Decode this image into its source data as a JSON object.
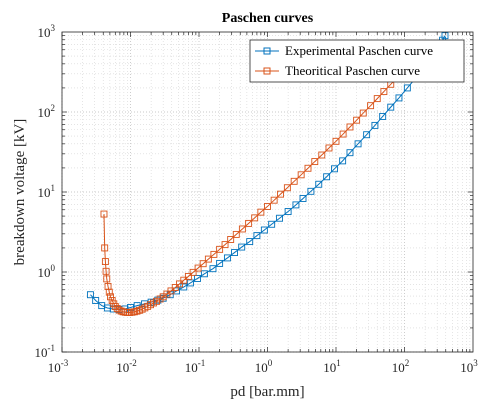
{
  "chart_data": {
    "type": "line",
    "title": "Paschen curves",
    "xlabel": "pd [bar.mm]",
    "ylabel": "breakdown voltage [kV]",
    "xscale": "log",
    "yscale": "log",
    "xlim": [
      0.001,
      1000
    ],
    "ylim": [
      0.1,
      1000
    ],
    "x_ticks": [
      {
        "base": "10",
        "exp": "-3"
      },
      {
        "base": "10",
        "exp": "-2"
      },
      {
        "base": "10",
        "exp": "-1"
      },
      {
        "base": "10",
        "exp": "0"
      },
      {
        "base": "10",
        "exp": "1"
      },
      {
        "base": "10",
        "exp": "2"
      },
      {
        "base": "10",
        "exp": "3"
      }
    ],
    "y_ticks": [
      {
        "base": "10",
        "exp": "-1"
      },
      {
        "base": "10",
        "exp": "0"
      },
      {
        "base": "10",
        "exp": "1"
      },
      {
        "base": "10",
        "exp": "2"
      },
      {
        "base": "10",
        "exp": "3"
      }
    ],
    "grid": "major and minor, dotted",
    "legend_position": "top-right",
    "series": [
      {
        "name": "Experimental Paschen curve",
        "color": "#0072BD",
        "marker": "square",
        "x": [
          0.0026,
          0.0031,
          0.0038,
          0.0046,
          0.0056,
          0.0068,
          0.0083,
          0.01,
          0.0125,
          0.016,
          0.02,
          0.025,
          0.03,
          0.038,
          0.047,
          0.06,
          0.075,
          0.095,
          0.12,
          0.16,
          0.2,
          0.26,
          0.33,
          0.42,
          0.55,
          0.7,
          0.9,
          1.15,
          1.5,
          2,
          2.6,
          3.3,
          4.3,
          5.6,
          7.3,
          9.5,
          12.5,
          16,
          21,
          28,
          37,
          48,
          63,
          83,
          110,
          145,
          190,
          250,
          300,
          330,
          360,
          390
        ],
        "y": [
          0.52,
          0.44,
          0.38,
          0.355,
          0.345,
          0.34,
          0.345,
          0.36,
          0.38,
          0.4,
          0.42,
          0.445,
          0.47,
          0.52,
          0.58,
          0.65,
          0.73,
          0.83,
          0.95,
          1.1,
          1.28,
          1.5,
          1.75,
          2.05,
          2.4,
          2.85,
          3.35,
          3.95,
          4.7,
          5.7,
          6.9,
          8.3,
          10.2,
          12.5,
          15.5,
          19.5,
          24.5,
          31,
          40,
          52,
          68,
          88,
          115,
          150,
          200,
          265,
          350,
          470,
          580,
          680,
          790,
          900
        ]
      },
      {
        "name": "Theoritical Paschen curve",
        "color": "#D95319",
        "marker": "square",
        "x": [
          0.0041,
          0.0042,
          0.0043,
          0.0044,
          0.0045,
          0.0047,
          0.0049,
          0.0051,
          0.0054,
          0.0057,
          0.006,
          0.0064,
          0.0068,
          0.0073,
          0.0078,
          0.0084,
          0.009,
          0.0097,
          0.0105,
          0.0114,
          0.0124,
          0.0135,
          0.0148,
          0.0162,
          0.0178,
          0.0196,
          0.0216,
          0.024,
          0.027,
          0.03,
          0.034,
          0.039,
          0.045,
          0.052,
          0.06,
          0.07,
          0.082,
          0.097,
          0.115,
          0.137,
          0.165,
          0.2,
          0.24,
          0.29,
          0.35,
          0.43,
          0.53,
          0.65,
          0.8,
          1,
          1.25,
          1.55,
          1.95,
          2.45,
          3.1,
          3.9,
          4.9,
          6.2,
          7.9,
          10,
          12.7,
          16,
          20,
          25,
          32,
          40,
          50,
          63,
          80,
          100,
          125,
          160,
          200
        ],
        "y": [
          5.3,
          2.0,
          1.35,
          1.02,
          0.82,
          0.66,
          0.56,
          0.49,
          0.44,
          0.4,
          0.37,
          0.35,
          0.335,
          0.325,
          0.318,
          0.314,
          0.312,
          0.312,
          0.314,
          0.318,
          0.324,
          0.332,
          0.343,
          0.356,
          0.372,
          0.39,
          0.41,
          0.43,
          0.46,
          0.49,
          0.53,
          0.58,
          0.64,
          0.71,
          0.79,
          0.88,
          0.99,
          1.12,
          1.27,
          1.45,
          1.66,
          1.92,
          2.2,
          2.55,
          2.95,
          3.45,
          4.05,
          4.75,
          5.6,
          6.6,
          7.9,
          9.4,
          11.3,
          13.6,
          16.4,
          19.8,
          24,
          29,
          35.5,
          43,
          53,
          65,
          79,
          97,
          120,
          147,
          180,
          222,
          275,
          340,
          420,
          520,
          650
        ]
      }
    ]
  }
}
